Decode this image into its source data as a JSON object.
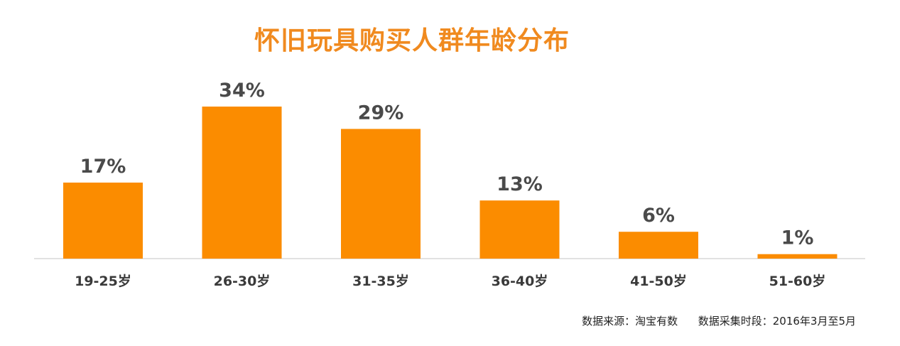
{
  "chart_data": {
    "type": "bar",
    "title": "怀旧玩具购买人群年龄分布",
    "categories": [
      "19-25岁",
      "26-30岁",
      "31-35岁",
      "36-40岁",
      "41-50岁",
      "51-60岁"
    ],
    "values": [
      17,
      34,
      29,
      13,
      6,
      1
    ],
    "value_labels": [
      "17%",
      "34%",
      "29%",
      "13%",
      "6%",
      "1%"
    ],
    "unit": "%",
    "xlabel": "",
    "ylabel": "",
    "ylim": [
      0,
      34
    ],
    "grid": false,
    "legend": "none",
    "bar_color": "#fb8c00",
    "axis_color": "#d9d9d9"
  },
  "footer": {
    "source": "数据来源：淘宝有数",
    "period": "数据采集时段：2016年3月至5月"
  },
  "colors": {
    "title": "#f08a1f",
    "label": "#4a4a4a"
  }
}
